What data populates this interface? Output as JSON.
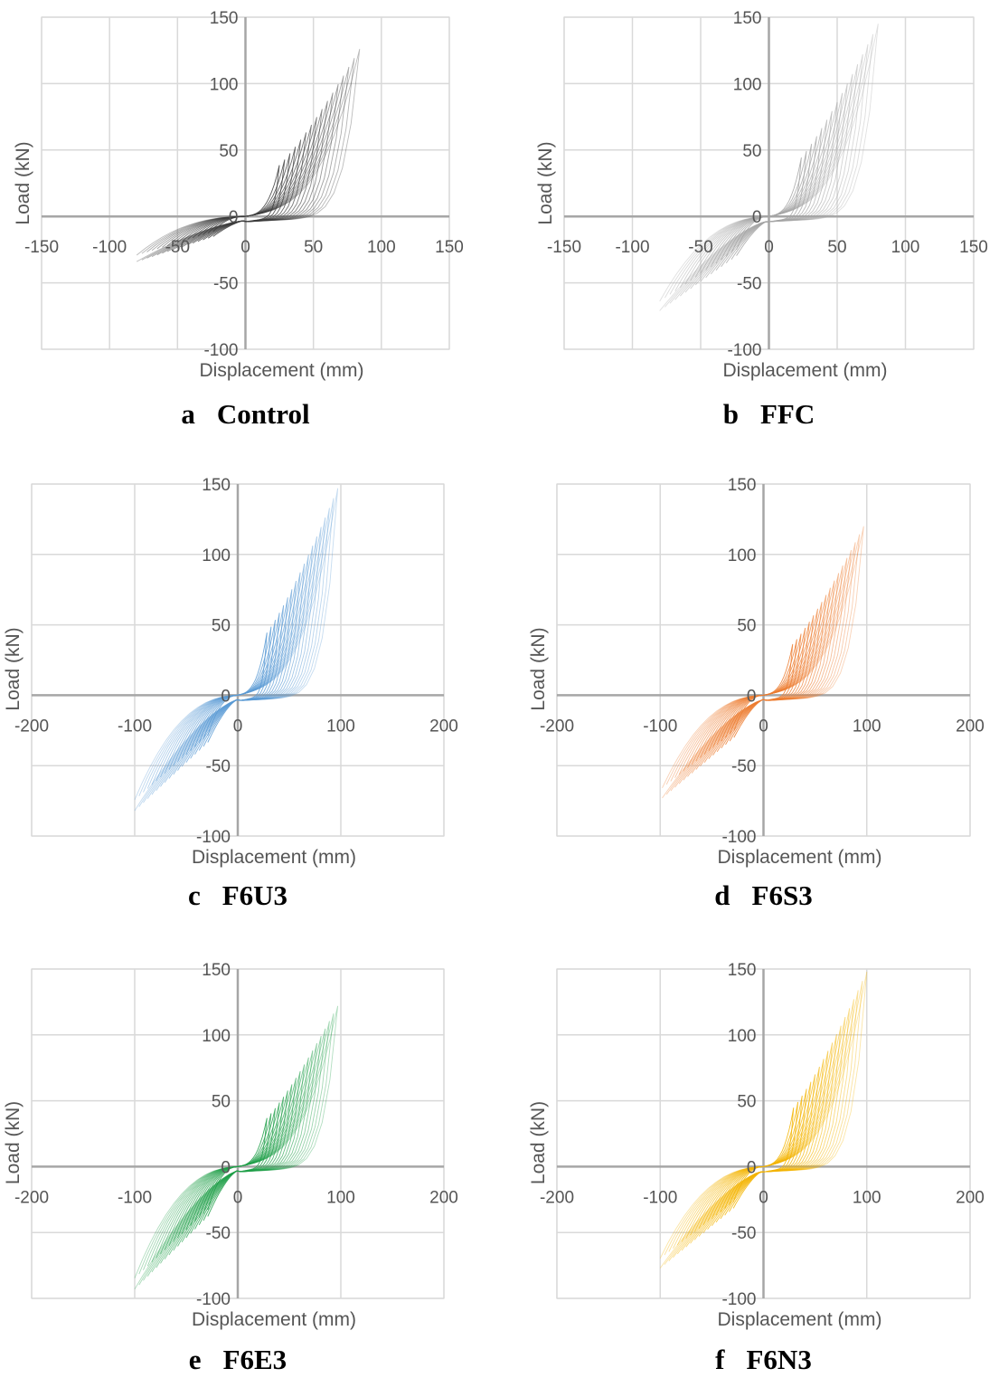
{
  "chart_data": [
    {
      "type": "line",
      "panel_letter": "a",
      "panel_name": "Control",
      "xlabel": "Displacement (mm)",
      "ylabel": "Load (kN)",
      "xlim": [
        -150,
        150
      ],
      "ylim": [
        -100,
        150
      ],
      "xticks": [
        "-150",
        "-100",
        "-50",
        "0",
        "50",
        "100",
        "150"
      ],
      "yticks": [
        "-100",
        "-50",
        "0",
        "50",
        "100",
        "150"
      ],
      "grid": true,
      "color": "#3c3c3c",
      "hysteresis": {
        "max_disp": 84,
        "min_disp": -80,
        "max_load": 126,
        "min_load": -31,
        "cycles": 16
      }
    },
    {
      "type": "line",
      "panel_letter": "b",
      "panel_name": "FFC",
      "xlabel": "Displacement (mm)",
      "ylabel": "Load (kN)",
      "xlim": [
        -150,
        150
      ],
      "ylim": [
        -100,
        150
      ],
      "xticks": [
        "-150",
        "-100",
        "-50",
        "0",
        "50",
        "100",
        "150"
      ],
      "yticks": [
        "-100",
        "-50",
        "0",
        "50",
        "100",
        "150"
      ],
      "grid": true,
      "color": "#a6a6a6",
      "hysteresis": {
        "max_disp": 80,
        "min_disp": -80,
        "max_load": 145,
        "min_load": -68,
        "cycles": 16
      }
    },
    {
      "type": "line",
      "panel_letter": "c",
      "panel_name": "F6U3",
      "xlabel": "Displacement (mm)",
      "ylabel": "Load (kN)",
      "xlim": [
        -200,
        200
      ],
      "ylim": [
        -100,
        150
      ],
      "xticks": [
        "-200",
        "-100",
        "0",
        "100",
        "200"
      ],
      "yticks": [
        "-100",
        "-50",
        "0",
        "50",
        "100",
        "150"
      ],
      "grid": true,
      "color": "#5b9bd5",
      "hysteresis": {
        "max_disp": 97,
        "min_disp": -100,
        "max_load": 147,
        "min_load": -79,
        "cycles": 18
      }
    },
    {
      "type": "line",
      "panel_letter": "d",
      "panel_name": "F6S3",
      "xlabel": "Displacement (mm)",
      "ylabel": "Load (kN)",
      "xlim": [
        -200,
        200
      ],
      "ylim": [
        -100,
        150
      ],
      "xticks": [
        "-200",
        "-100",
        "0",
        "100",
        "200"
      ],
      "yticks": [
        "-100",
        "-50",
        "0",
        "50",
        "100",
        "150"
      ],
      "grid": true,
      "color": "#ed7d31",
      "hysteresis": {
        "max_disp": 97,
        "min_disp": -98,
        "max_load": 120,
        "min_load": -70,
        "cycles": 18
      }
    },
    {
      "type": "line",
      "panel_letter": "e",
      "panel_name": "F6E3",
      "xlabel": "Displacement (mm)",
      "ylabel": "Load (kN)",
      "xlim": [
        -200,
        200
      ],
      "ylim": [
        -100,
        150
      ],
      "xticks": [
        "-200",
        "-100",
        "0",
        "100",
        "200"
      ],
      "yticks": [
        "-100",
        "-50",
        "0",
        "50",
        "100",
        "150"
      ],
      "grid": true,
      "color": "#21a04a",
      "hysteresis": {
        "max_disp": 97,
        "min_disp": -100,
        "max_load": 122,
        "min_load": -90,
        "cycles": 18
      }
    },
    {
      "type": "line",
      "panel_letter": "f",
      "panel_name": "F6N3",
      "xlabel": "Displacement (mm)",
      "ylabel": "Load (kN)",
      "xlim": [
        -200,
        200
      ],
      "ylim": [
        -100,
        150
      ],
      "xticks": [
        "-200",
        "-100",
        "0",
        "100",
        "200"
      ],
      "yticks": [
        "-100",
        "-50",
        "0",
        "50",
        "100",
        "150"
      ],
      "grid": true,
      "color": "#f4b400",
      "hysteresis": {
        "max_disp": 100,
        "min_disp": -100,
        "max_load": 148,
        "min_load": -74,
        "cycles": 18
      }
    }
  ]
}
